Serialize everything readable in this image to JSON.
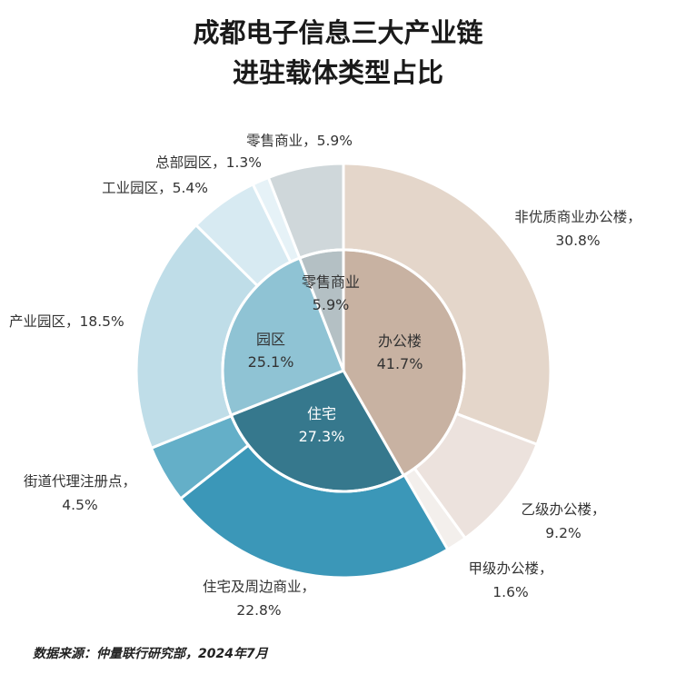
{
  "title_lines": [
    "成都电子信息三大产业链",
    "进驻载体类型占比"
  ],
  "source": "数据来源：仲量联行研究部，2024年7月",
  "chart_data": {
    "type": "pie",
    "subtype": "nested-donut",
    "inner": [
      {
        "label": "办公楼",
        "value": 41.7,
        "display": "41.7%",
        "color": "#c8b2a2",
        "text_color": "#333333"
      },
      {
        "label": "住宅",
        "value": 27.3,
        "display": "27.3%",
        "color": "#36788d",
        "text_color": "#ffffff"
      },
      {
        "label": "园区",
        "value": 25.1,
        "display": "25.1%",
        "color": "#8fc3d4",
        "text_color": "#333333"
      },
      {
        "label": "零售商业",
        "value": 5.9,
        "display": "5.9%",
        "color": "#b4c0c4",
        "text_color": "#333333"
      }
    ],
    "outer": [
      {
        "label": "非优质商业办公楼，",
        "value": 30.8,
        "display": "30.8%",
        "color": "#e4d6ca"
      },
      {
        "label": "乙级办公楼，",
        "value": 9.2,
        "display": "9.2%",
        "color": "#ece2dd"
      },
      {
        "label": "甲级办公楼，",
        "value": 1.6,
        "display": "1.6%",
        "color": "#f3efec"
      },
      {
        "label": "住宅及周边商业，",
        "value": 22.8,
        "display": "22.8%",
        "color": "#3b97b8"
      },
      {
        "label": "街道代理注册点，",
        "value": 4.5,
        "display": "4.5%",
        "color": "#64afc8"
      },
      {
        "label": "产业园区，",
        "value": 18.5,
        "display": "18.5%",
        "color": "#bfdde8"
      },
      {
        "label": "工业园区，",
        "value": 5.4,
        "display": "5.4%",
        "color": "#d7eaf2"
      },
      {
        "label": "总部园区，",
        "value": 1.3,
        "display": "1.3%",
        "color": "#e6f2f7"
      },
      {
        "label": "零售商业，",
        "value": 5.9,
        "display": "5.9%",
        "color": "#cfd7da"
      }
    ]
  }
}
